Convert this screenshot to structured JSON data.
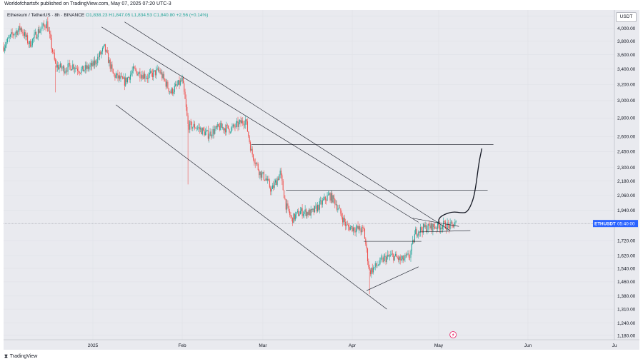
{
  "header": {
    "published": "Worldofchartsfx published on TradingView.com, May 07, 2025 07:20 UTC-3"
  },
  "legend": {
    "symbol": "Ethereum / TetherUS · 8h · BINANCE",
    "o": "O1,838.23",
    "h": "H1,847.05",
    "l": "L1,834.53",
    "c": "C1,840.80",
    "change": "+2.56 (+0.14%)"
  },
  "currency": "USDT",
  "price_tag": {
    "symbol": "ETHUSDT",
    "timer": "05:40:00",
    "color": "#2962ff"
  },
  "colors": {
    "up": "#26a69a",
    "down": "#ef5350",
    "lines": "#131722"
  },
  "footer": {
    "brand": "TradingView"
  },
  "chart_data": {
    "type": "candlestick",
    "symbol": "ETHUSDT",
    "interval": "8h",
    "y_scale": "log",
    "ylim": [
      1160,
      4300
    ],
    "y_ticks": [
      "4,200.00",
      "4,000.00",
      "3,800.00",
      "3,600.00",
      "3,400.00",
      "3,200.00",
      "3,000.00",
      "2,800.00",
      "2,600.00",
      "2,450.00",
      "2,300.00",
      "2,180.00",
      "2,060.00",
      "1,940.00",
      "1,840.00",
      "1,720.00",
      "1,620.00",
      "1,540.00",
      "1,460.00",
      "1,380.00",
      "1,310.00",
      "1,240.00",
      "1,180.00"
    ],
    "y_tick_values": [
      4200,
      4000,
      3800,
      3600,
      3400,
      3200,
      3000,
      2800,
      2600,
      2450,
      2300,
      2180,
      2060,
      1940,
      1840,
      1720,
      1620,
      1540,
      1460,
      1380,
      1310,
      1240,
      1180
    ],
    "x_ticks": [
      "2025",
      "Feb",
      "Mar",
      "Apr",
      "May",
      "Jun",
      "Ju"
    ],
    "x_tick_dates": [
      "2025-01-01",
      "2025-02-01",
      "2025-03-01",
      "2025-04-01",
      "2025-05-01",
      "2025-06-01",
      "2025-07-01"
    ],
    "x_range": [
      "2024-12-01",
      "2025-07-01"
    ],
    "last_price": 1840.8,
    "close_path": [
      [
        "2024-12-01",
        3720
      ],
      [
        "2024-12-04",
        3900
      ],
      [
        "2024-12-07",
        4000
      ],
      [
        "2024-12-10",
        3750
      ],
      [
        "2024-12-13",
        3950
      ],
      [
        "2024-12-16",
        4080
      ],
      [
        "2024-12-19",
        3450
      ],
      [
        "2024-12-22",
        3400
      ],
      [
        "2024-12-25",
        3450
      ],
      [
        "2024-12-28",
        3380
      ],
      [
        "2025-01-01",
        3450
      ],
      [
        "2025-01-05",
        3700
      ],
      [
        "2025-01-08",
        3330
      ],
      [
        "2025-01-12",
        3230
      ],
      [
        "2025-01-15",
        3380
      ],
      [
        "2025-01-20",
        3300
      ],
      [
        "2025-01-24",
        3380
      ],
      [
        "2025-01-28",
        3100
      ],
      [
        "2025-02-01",
        3250
      ],
      [
        "2025-02-02",
        3000
      ],
      [
        "2025-02-03",
        2720
      ],
      [
        "2025-02-06",
        2700
      ],
      [
        "2025-02-10",
        2620
      ],
      [
        "2025-02-14",
        2700
      ],
      [
        "2025-02-18",
        2680
      ],
      [
        "2025-02-23",
        2780
      ],
      [
        "2025-02-25",
        2450
      ],
      [
        "2025-02-28",
        2250
      ],
      [
        "2025-03-02",
        2200
      ],
      [
        "2025-03-04",
        2100
      ],
      [
        "2025-03-07",
        2250
      ],
      [
        "2025-03-09",
        1980
      ],
      [
        "2025-03-11",
        1870
      ],
      [
        "2025-03-14",
        1930
      ],
      [
        "2025-03-18",
        1920
      ],
      [
        "2025-03-24",
        2060
      ],
      [
        "2025-03-26",
        2010
      ],
      [
        "2025-03-30",
        1820
      ],
      [
        "2025-04-03",
        1800
      ],
      [
        "2025-04-05",
        1790
      ],
      [
        "2025-04-07",
        1520
      ],
      [
        "2025-04-09",
        1550
      ],
      [
        "2025-04-12",
        1600
      ],
      [
        "2025-04-15",
        1620
      ],
      [
        "2025-04-18",
        1590
      ],
      [
        "2025-04-21",
        1620
      ],
      [
        "2025-04-23",
        1780
      ],
      [
        "2025-04-26",
        1810
      ],
      [
        "2025-04-30",
        1820
      ],
      [
        "2025-05-03",
        1830
      ],
      [
        "2025-05-05",
        1820
      ],
      [
        "2025-05-07",
        1840.8
      ]
    ],
    "spikes": [
      {
        "date": "2025-02-03",
        "low": 2150
      },
      {
        "date": "2024-12-19",
        "low": 3100
      },
      {
        "date": "2025-04-07",
        "low": 1390
      }
    ],
    "annotations": {
      "horizontal_lines": [
        {
          "price": 2520,
          "from": "2025-02-25",
          "to": "2025-05-20"
        },
        {
          "price": 2100,
          "from": "2025-03-09",
          "to": "2025-05-18"
        },
        {
          "price": 1715,
          "from": "2025-04-05",
          "to": "2025-04-25"
        }
      ],
      "trend_lines": [
        {
          "from": [
            "2025-01-12",
            4100
          ],
          "to": [
            "2025-05-05",
            1790
          ]
        },
        {
          "from": [
            "2025-01-04",
            4020
          ],
          "to": [
            "2025-04-24",
            1850
          ]
        },
        {
          "from": [
            "2025-01-09",
            2950
          ],
          "to": [
            "2025-04-13",
            1310
          ]
        },
        {
          "from": [
            "2025-04-06",
            1410
          ],
          "to": [
            "2025-04-24",
            1550
          ]
        },
        {
          "from": [
            "2025-04-22",
            1880
          ],
          "to": [
            "2025-05-08",
            1820
          ]
        },
        {
          "from": [
            "2025-04-24",
            1780
          ],
          "to": [
            "2025-05-12",
            1790
          ]
        }
      ],
      "projection_path": [
        [
          "2025-05-01",
          1835
        ],
        [
          "2025-05-01",
          1880
        ],
        [
          "2025-05-03",
          1910
        ],
        [
          "2025-05-06",
          1930
        ],
        [
          "2025-05-09",
          1920
        ],
        [
          "2025-05-11",
          1925
        ],
        [
          "2025-05-13",
          2020
        ],
        [
          "2025-05-14",
          2150
        ],
        [
          "2025-05-15",
          2350
        ],
        [
          "2025-05-16",
          2480
        ]
      ]
    }
  }
}
